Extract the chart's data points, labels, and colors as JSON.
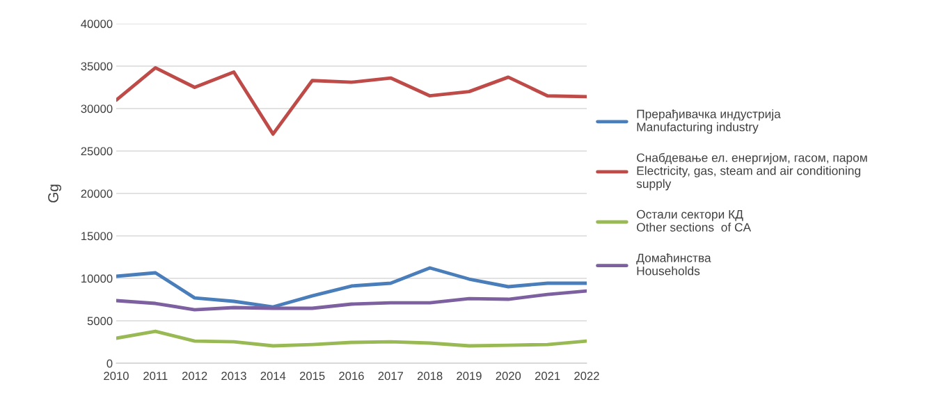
{
  "chart_data": {
    "type": "line",
    "ylabel": "Gg",
    "x": [
      2010,
      2011,
      2012,
      2013,
      2014,
      2015,
      2016,
      2017,
      2018,
      2019,
      2020,
      2021,
      2022
    ],
    "xlim": [
      2010,
      2022
    ],
    "xticks": [
      2010,
      2011,
      2012,
      2013,
      2014,
      2015,
      2016,
      2017,
      2018,
      2019,
      2020,
      2021,
      2022
    ],
    "ylim": [
      0,
      40000
    ],
    "yticks": [
      0,
      5000,
      10000,
      15000,
      20000,
      25000,
      30000,
      35000,
      40000
    ],
    "grid": "y",
    "legend": "right",
    "marker": "none",
    "line_style": "solid",
    "series": [
      {
        "name": "Прерађивачка индустрија\nManufacturing industry",
        "color": "#4a7ebb",
        "values": [
          10250,
          10660,
          7700,
          7300,
          6640,
          7950,
          9100,
          9430,
          11230,
          9920,
          9020,
          9430,
          9430
        ]
      },
      {
        "name": "Снабдевање ел. енергијом, гасом, паром\nElectricity, gas, steam and air conditioning\nsupply",
        "color": "#be4b48",
        "values": [
          31000,
          34800,
          32500,
          34300,
          27000,
          33300,
          33100,
          33600,
          31500,
          32000,
          33700,
          31500,
          31400
        ]
      },
      {
        "name": "Остали сектори КД\nOther sections  of CA",
        "color": "#98b954",
        "values": [
          2950,
          3770,
          2620,
          2540,
          2050,
          2210,
          2460,
          2540,
          2380,
          2050,
          2130,
          2210,
          2620
        ]
      },
      {
        "name": "Домаћинства\nHouseholds",
        "color": "#7d60a0",
        "values": [
          7380,
          7050,
          6310,
          6560,
          6480,
          6480,
          6970,
          7130,
          7130,
          7620,
          7540,
          8110,
          8520
        ]
      }
    ]
  }
}
